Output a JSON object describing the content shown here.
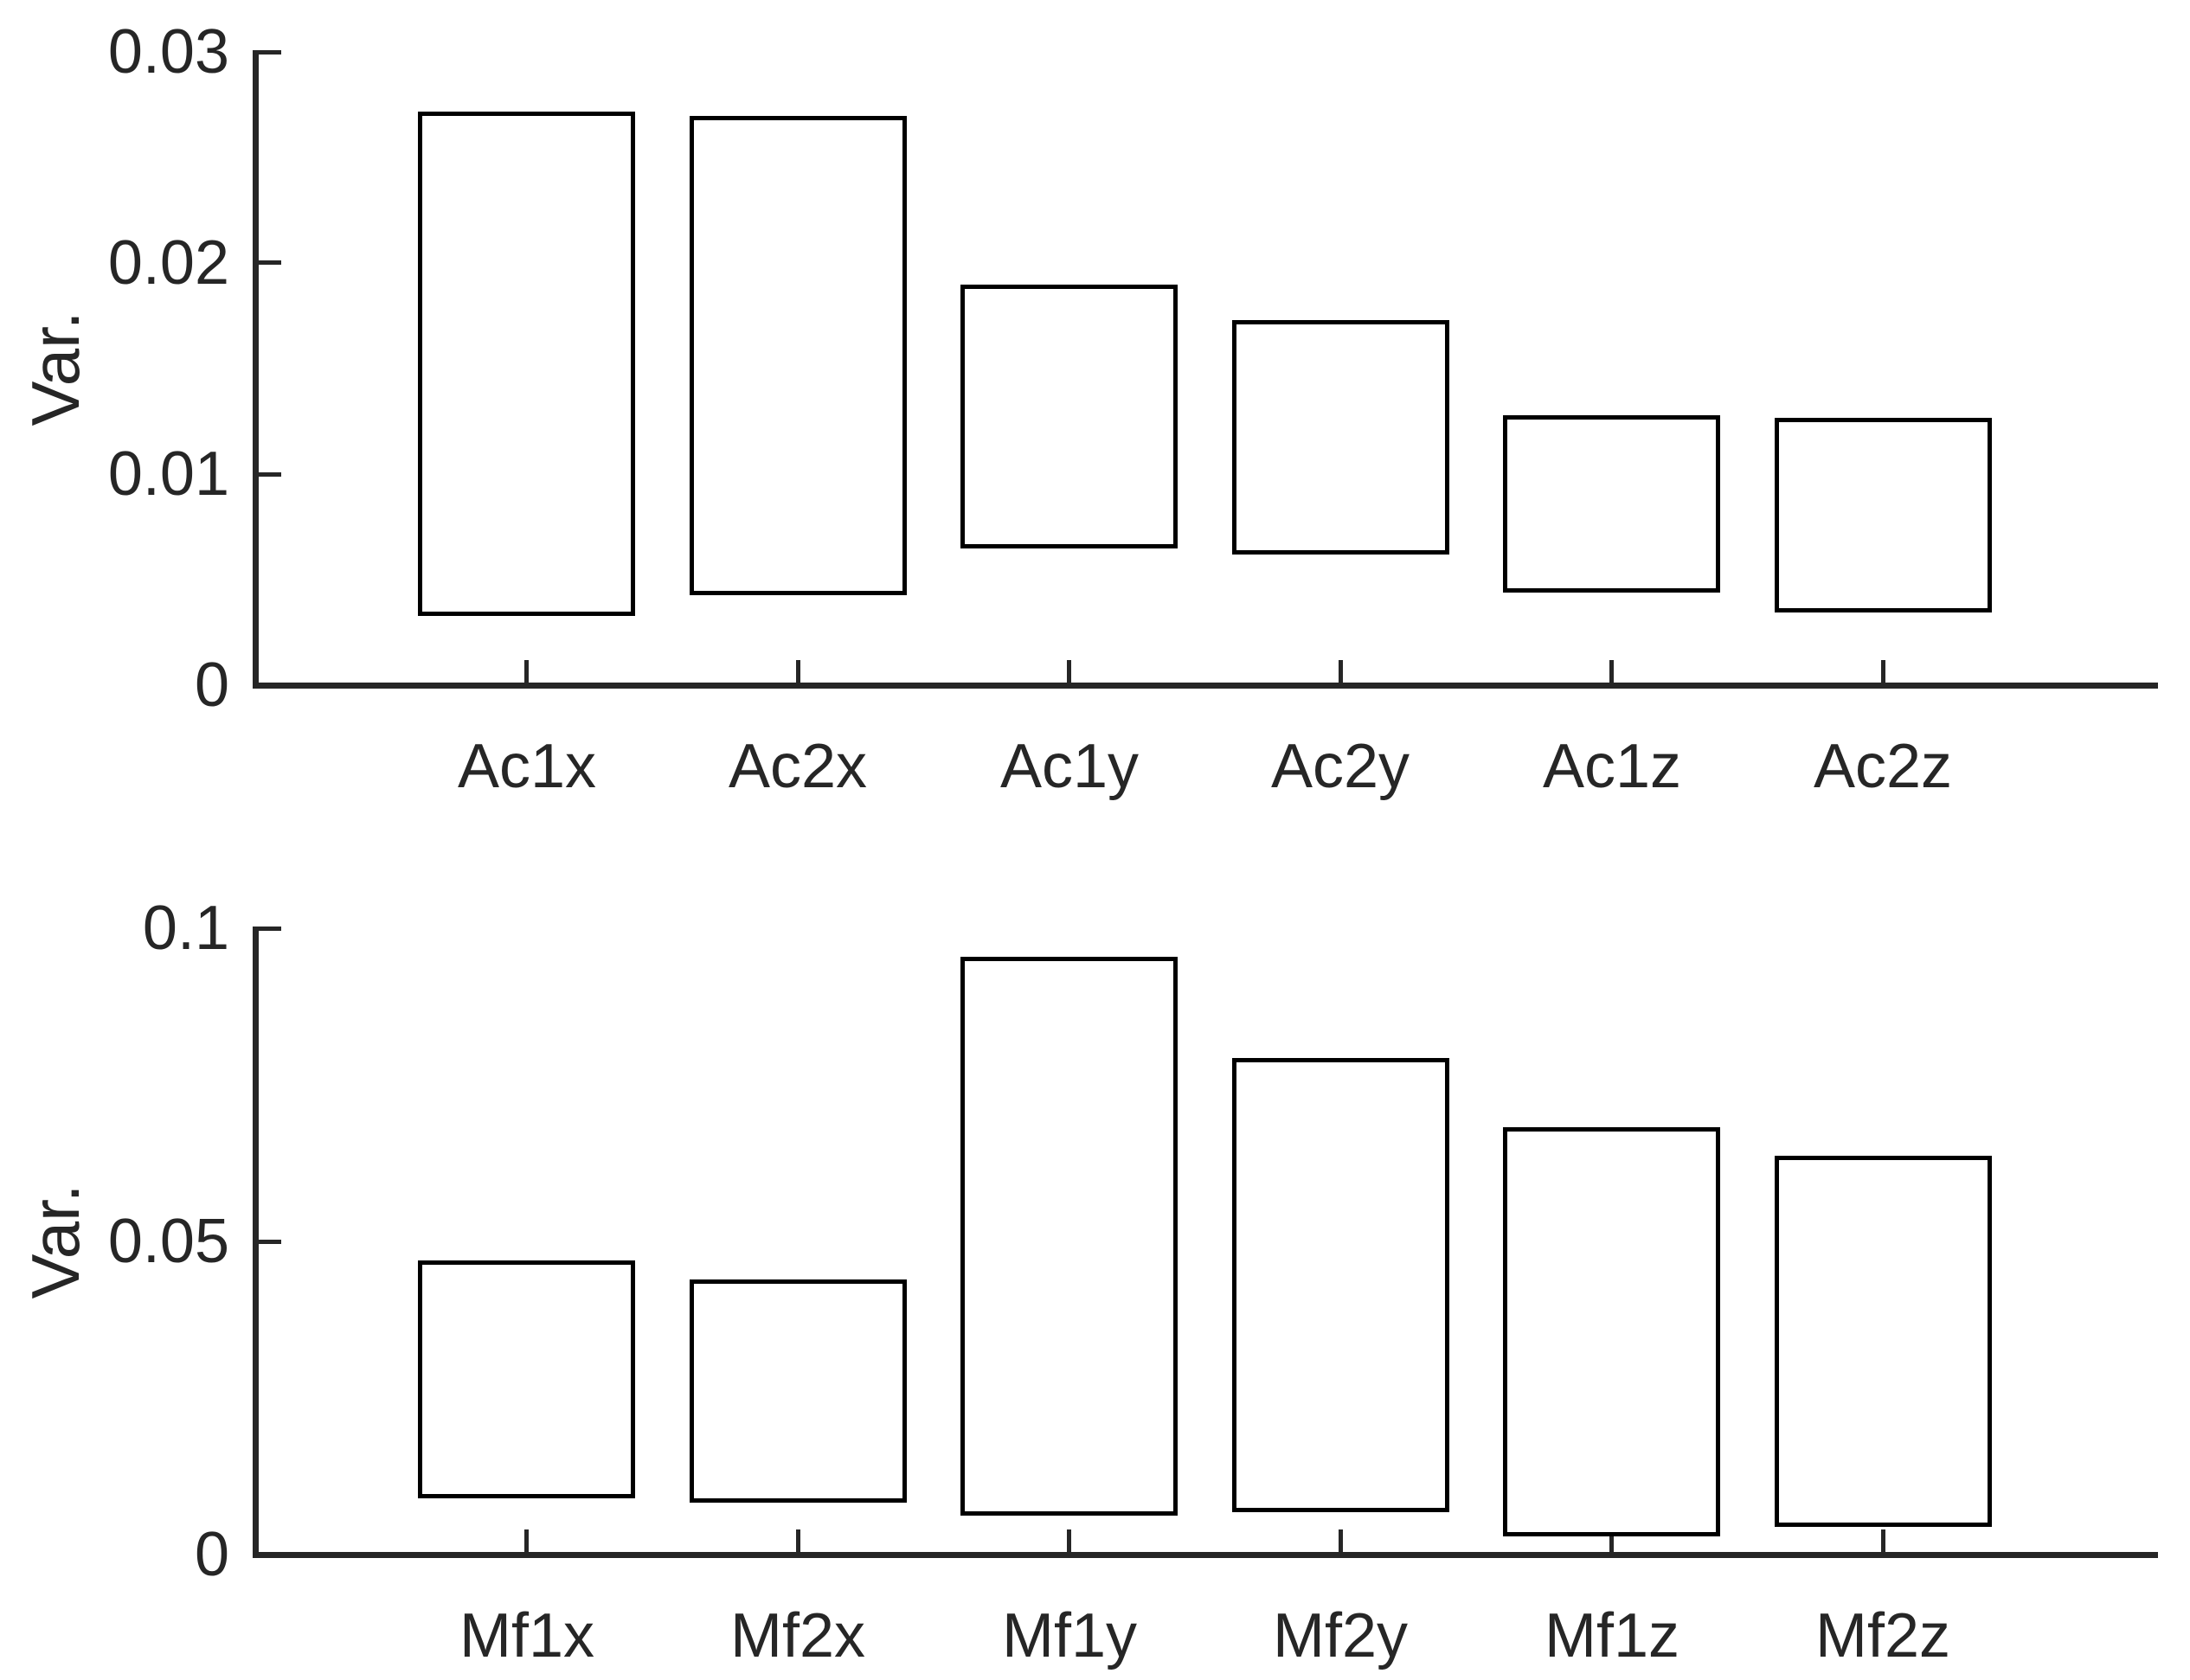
{
  "figure": {
    "background": "#ffffff"
  },
  "style": {
    "axis_color": "#262626",
    "tick_color": "#262626",
    "label_color": "#262626",
    "bar_edge_color": "#000000",
    "bar_fill_color": "#ffffff"
  },
  "chart_data": [
    {
      "type": "bar",
      "subtype": "floating-range-bars",
      "title": "",
      "xlabel": "",
      "ylabel": "Var.",
      "categories": [
        "Ac1x",
        "Ac2x",
        "Ac1y",
        "Ac2y",
        "Ac1z",
        "Ac2z"
      ],
      "series": [
        {
          "name": "range_low",
          "values": [
            0.0034,
            0.0044,
            0.0066,
            0.0063,
            0.0045,
            0.0036
          ]
        },
        {
          "name": "range_high",
          "values": [
            0.0271,
            0.0269,
            0.0189,
            0.0172,
            0.0127,
            0.0126
          ]
        }
      ],
      "ylim": [
        0,
        0.03
      ],
      "yticks": [
        0,
        0.01,
        0.02,
        0.03
      ],
      "ytick_labels": [
        "0",
        "0.01",
        "0.02",
        "0.03"
      ],
      "xlim": [
        0,
        7
      ],
      "bar_width_fraction": 0.8,
      "grid": false
    },
    {
      "type": "bar",
      "subtype": "floating-range-bars",
      "title": "",
      "xlabel": "",
      "ylabel": "Var.",
      "categories": [
        "Mf1x",
        "Mf2x",
        "Mf1y",
        "Mf2y",
        "Mf1z",
        "Mf2z"
      ],
      "series": [
        {
          "name": "range_low",
          "values": [
            0.0094,
            0.0087,
            0.0067,
            0.0072,
            0.0033,
            0.0049
          ]
        },
        {
          "name": "range_high",
          "values": [
            0.0467,
            0.0437,
            0.0952,
            0.079,
            0.0679,
            0.0634
          ]
        }
      ],
      "ylim": [
        0,
        0.1
      ],
      "yticks": [
        0,
        0.05,
        0.1
      ],
      "ytick_labels": [
        "0",
        "0.05",
        "0.1"
      ],
      "xlim": [
        0,
        7
      ],
      "bar_width_fraction": 0.8,
      "grid": false
    }
  ]
}
